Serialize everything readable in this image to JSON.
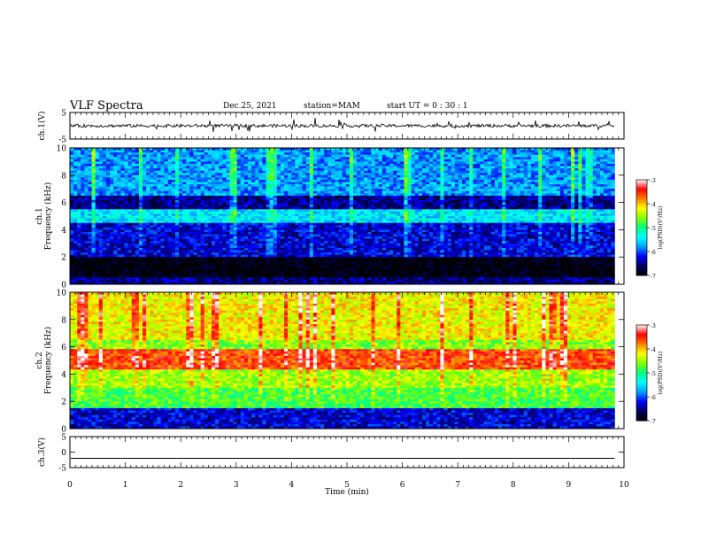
{
  "header": {
    "title": "VLF Spectra",
    "date": "Dec.25, 2021",
    "station": "station=MAM",
    "start_ut": "start  UT =   0 : 30 : 1"
  },
  "colors": {
    "waveform": "#000000",
    "colormap": [
      "#000000",
      "#000060",
      "#0000ff",
      "#00a0ff",
      "#00ffff",
      "#00ff80",
      "#80ff00",
      "#ffff00",
      "#ff8000",
      "#ff0000",
      "#ffffff"
    ]
  },
  "chart_data": [
    {
      "type": "line",
      "panel": "ch1-waveform",
      "ylabel": "ch.1(V)",
      "ylim": [
        -5,
        5
      ],
      "yticks": [
        "5",
        "-5"
      ],
      "xlim": [
        0,
        10
      ],
      "description_level": 0
    },
    {
      "type": "heatmap",
      "panel": "ch1-spectrogram",
      "ylabel": [
        "ch.1",
        "Frequency (kHz)"
      ],
      "ylim": [
        0,
        10
      ],
      "yticks": [
        "0",
        "2",
        "4",
        "6",
        "8",
        "10"
      ],
      "xlim": [
        0,
        9.83
      ],
      "colorbar": {
        "label": "log(PSD)(V²/Hz)",
        "range": [
          -7,
          -3
        ],
        "ticks": [
          "-3",
          "-4",
          "-5",
          "-6",
          "-7"
        ]
      },
      "bands": [
        {
          "f_khz": [
            0,
            0.5
          ],
          "log_psd": -6.5
        },
        {
          "f_khz": [
            0.5,
            2
          ],
          "log_psd": -7
        },
        {
          "f_khz": [
            2,
            4.5
          ],
          "log_psd": -6.3
        },
        {
          "f_khz": [
            4.5,
            5.5
          ],
          "log_psd": -5.5
        },
        {
          "f_khz": [
            5.5,
            6.5
          ],
          "log_psd": -6.5
        },
        {
          "f_khz": [
            6.5,
            10
          ],
          "log_psd": -5.8
        }
      ]
    },
    {
      "type": "heatmap",
      "panel": "ch2-spectrogram",
      "ylabel": [
        "ch.2",
        "Frequency (kHz)"
      ],
      "ylim": [
        0,
        10
      ],
      "yticks": [
        "0",
        "2",
        "4",
        "6",
        "8",
        "10"
      ],
      "xlim": [
        0,
        9.83
      ],
      "colorbar": {
        "label": "log(PSD)(V²/Hz)",
        "range": [
          -7,
          -3
        ],
        "ticks": [
          "-3",
          "-4",
          "-5",
          "-6",
          "-7"
        ]
      },
      "bands": [
        {
          "f_khz": [
            0,
            1.5
          ],
          "log_psd": -6.3
        },
        {
          "f_khz": [
            1.5,
            3
          ],
          "log_psd": -4.8
        },
        {
          "f_khz": [
            3,
            4.3
          ],
          "log_psd": -4.5
        },
        {
          "f_khz": [
            4.3,
            5.8
          ],
          "log_psd": -3.6
        },
        {
          "f_khz": [
            5.8,
            6.5
          ],
          "log_psd": -4.6
        },
        {
          "f_khz": [
            6.5,
            10
          ],
          "log_psd": -4.2
        }
      ]
    },
    {
      "type": "line",
      "panel": "ch3-waveform",
      "ylabel": "ch.3(V)",
      "ylim": [
        -5,
        5
      ],
      "yticks": [
        "5",
        "0",
        "-5"
      ],
      "xlim": [
        0,
        10
      ],
      "level": -2
    }
  ],
  "xaxis": {
    "label": "Time (min)",
    "ticks": [
      "0",
      "1",
      "2",
      "3",
      "4",
      "5",
      "6",
      "7",
      "8",
      "9",
      "10"
    ]
  }
}
